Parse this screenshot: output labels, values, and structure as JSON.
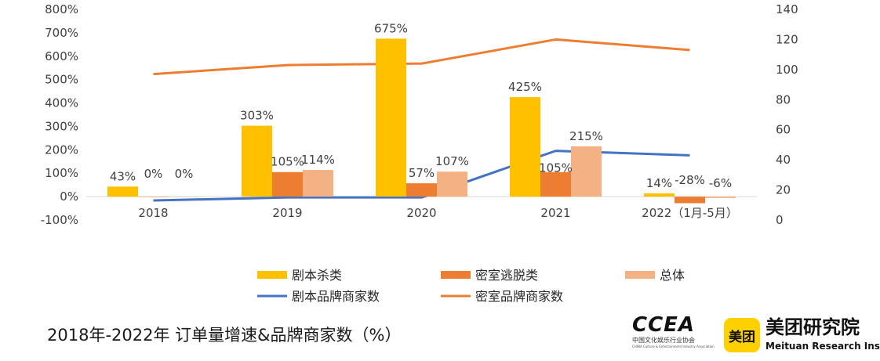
{
  "chart_data": {
    "type": "bar",
    "title": "2018年-2022年 订单量增速&品牌商家数（%）",
    "categories": [
      "2018",
      "2019",
      "2020",
      "2021",
      "2022（1月-5月）"
    ],
    "series": [
      {
        "name": "剧本杀类",
        "kind": "bar",
        "axis": "left",
        "color": "#FFC000",
        "values": [
          43,
          303,
          675,
          425,
          14
        ],
        "labels": [
          "43%",
          "303%",
          "675%",
          "425%",
          "14%"
        ]
      },
      {
        "name": "密室逃脱类",
        "kind": "bar",
        "axis": "left",
        "color": "#ED7D31",
        "values": [
          0,
          105,
          57,
          105,
          -28
        ],
        "labels": [
          "0%",
          "105%",
          "57%",
          "105%",
          "-28%"
        ]
      },
      {
        "name": "总体",
        "kind": "bar",
        "axis": "left",
        "color": "#F4B183",
        "values": [
          0,
          114,
          107,
          215,
          -6
        ],
        "labels": [
          "0%",
          "114%",
          "107%",
          "215%",
          "-6%"
        ]
      },
      {
        "name": "剧本品牌商家数",
        "kind": "line",
        "axis": "right",
        "color": "#4472C4",
        "values": [
          13,
          15,
          15,
          46,
          43
        ]
      },
      {
        "name": "密室品牌商家数",
        "kind": "line",
        "axis": "right",
        "color": "#ED7D31",
        "values": [
          97,
          103,
          104,
          120,
          113
        ]
      }
    ],
    "y_left": {
      "min": -100,
      "max": 800,
      "step": 100,
      "ticks": [
        "-100%",
        "0%",
        "100%",
        "200%",
        "300%",
        "400%",
        "500%",
        "600%",
        "700%",
        "800%"
      ]
    },
    "y_right": {
      "min": 0,
      "max": 140,
      "step": 20,
      "ticks": [
        "0",
        "20",
        "40",
        "60",
        "80",
        "100",
        "120",
        "140"
      ]
    },
    "legend_position": "bottom",
    "grid": false
  },
  "footer": {
    "title": "2018年-2022年 订单量增速&品牌商家数（%）",
    "ccea_logo_text": "CCEA",
    "ccea_cn": "中国文化娱乐行业协会",
    "ccea_en": "CHINA Culture & Entertainment Industry Association",
    "meituan_badge": "美团",
    "meituan_name": "美团研究院",
    "meituan_en": "Meituan Research Institute"
  }
}
